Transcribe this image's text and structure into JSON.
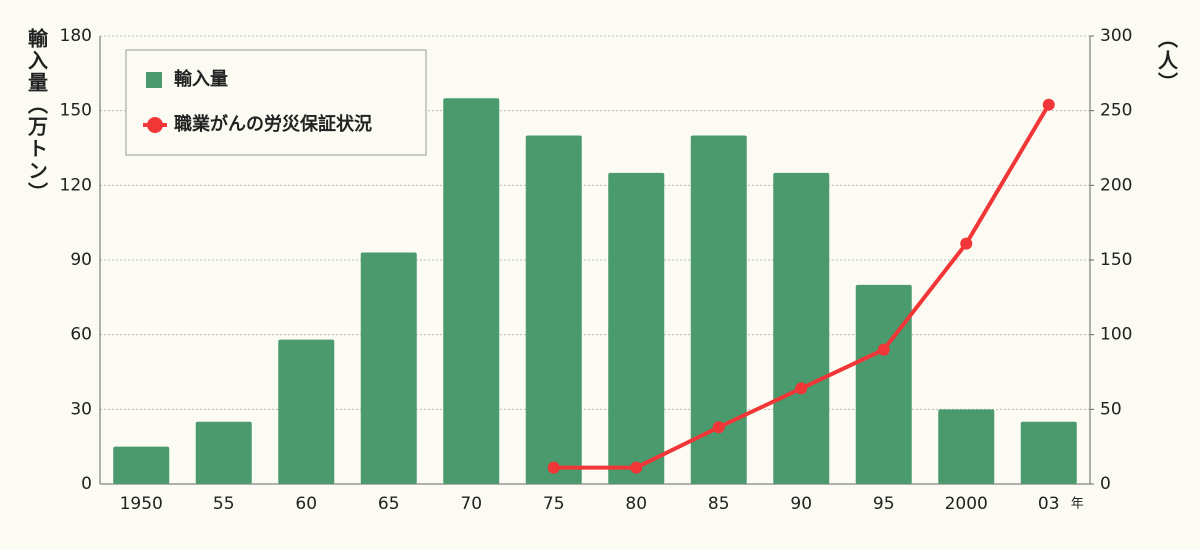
{
  "chart_data": {
    "type": "bar",
    "y_label": "輸入量（万トン）",
    "y2_label": "（人）",
    "x_unit": "年",
    "categories": [
      "1950",
      "55",
      "60",
      "65",
      "70",
      "75",
      "80",
      "85",
      "90",
      "95",
      "2000",
      "03"
    ],
    "series": [
      {
        "name": "輸入量",
        "type": "bar",
        "color": "#4a9a6e",
        "values": [
          15,
          25,
          58,
          93,
          155,
          140,
          125,
          140,
          125,
          80,
          30,
          25
        ]
      },
      {
        "name": "職業がんの労災保証状況",
        "type": "line",
        "axis": "y2",
        "color": "#f03636",
        "values": [
          null,
          null,
          null,
          null,
          null,
          11,
          11,
          38,
          64,
          90,
          161,
          254
        ]
      }
    ],
    "ylim": [
      0,
      180
    ],
    "yticks": [
      0,
      30,
      60,
      90,
      120,
      150,
      180
    ],
    "y2lim": [
      0,
      300
    ],
    "y2ticks": [
      0,
      50,
      100,
      150,
      200,
      250,
      300
    ],
    "grid": true
  }
}
